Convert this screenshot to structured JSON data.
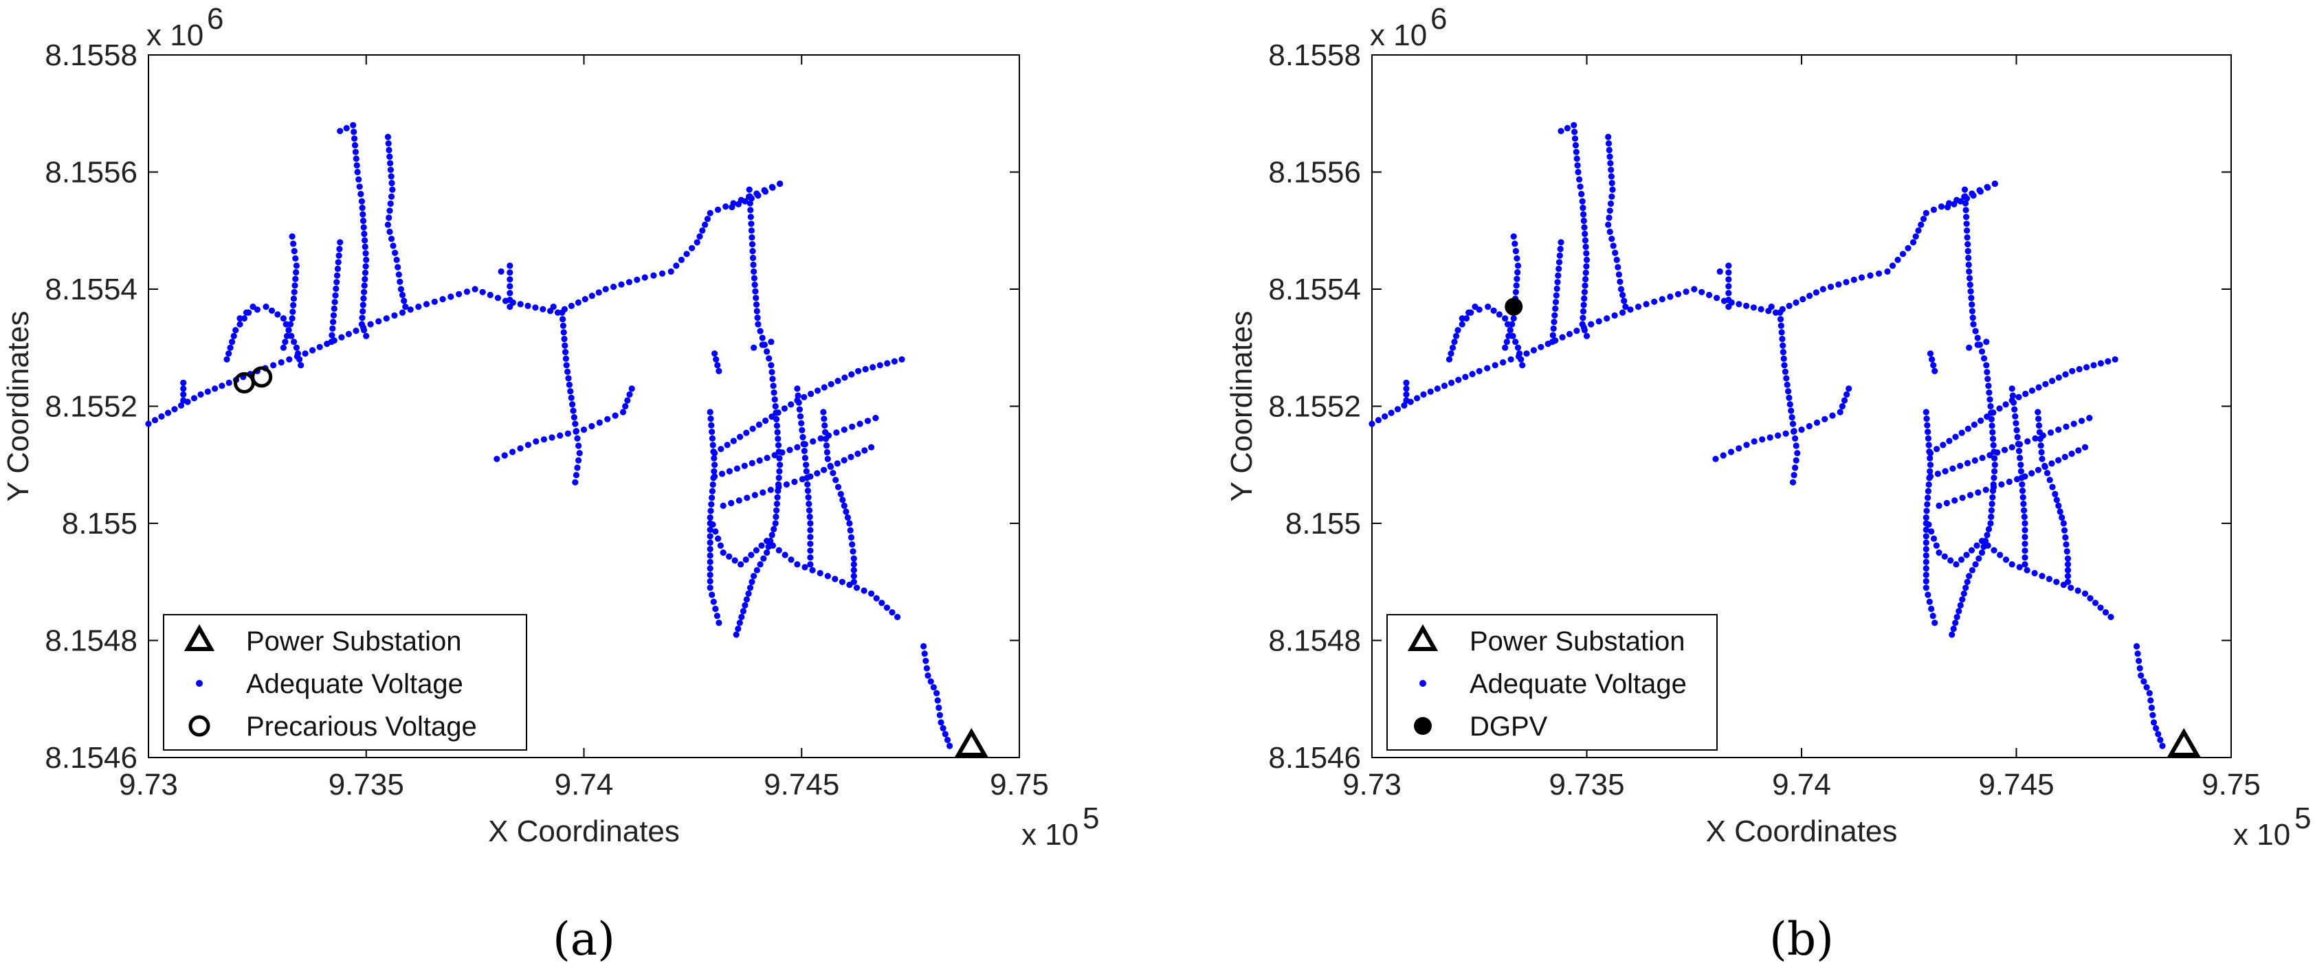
{
  "colors": {
    "adequate": "#0000ff",
    "marker": "#000000",
    "axis": "#000000"
  },
  "chart_data": [
    {
      "type": "scatter",
      "panel_label": "(a)",
      "xlabel": "X Coordinates",
      "ylabel": "Y Coordinates",
      "x_exponent": {
        "base": "x 10",
        "power": "5"
      },
      "y_exponent": {
        "base": "x 10",
        "power": "6"
      },
      "xlim": [
        9.73,
        9.75
      ],
      "ylim": [
        8.1546,
        8.1558
      ],
      "x_ticks": [
        "9.73",
        "9.735",
        "9.74",
        "9.745",
        "9.75"
      ],
      "y_ticks": [
        "8.1546",
        "8.1548",
        "8.155",
        "8.1552",
        "8.1554",
        "8.1556",
        "8.1558"
      ],
      "grid": false,
      "legend_position": "bottom-left",
      "legend": [
        "Power Substation",
        "Adequate Voltage",
        "Precarious Voltage"
      ],
      "series": [
        {
          "name": "Power Substation",
          "marker": "triangle",
          "points": [
            [
              9.7489,
              8.15462
            ]
          ]
        },
        {
          "name": "Precarious Voltage",
          "marker": "open-circle",
          "points": [
            [
              9.7322,
              8.15524
            ],
            [
              9.7326,
              8.15525
            ]
          ]
        }
      ]
    },
    {
      "type": "scatter",
      "panel_label": "(b)",
      "xlabel": "X Coordinates",
      "ylabel": "Y Coordinates",
      "x_exponent": {
        "base": "x 10",
        "power": "5"
      },
      "y_exponent": {
        "base": "x 10",
        "power": "6"
      },
      "xlim": [
        9.73,
        9.75
      ],
      "ylim": [
        8.1546,
        8.1558
      ],
      "x_ticks": [
        "9.73",
        "9.735",
        "9.74",
        "9.745",
        "9.75"
      ],
      "y_ticks": [
        "8.1546",
        "8.1548",
        "8.155",
        "8.1552",
        "8.1554",
        "8.1556",
        "8.1558"
      ],
      "grid": false,
      "legend_position": "bottom-left",
      "legend": [
        "Power Substation",
        "Adequate Voltage",
        "DGPV"
      ],
      "series": [
        {
          "name": "Power Substation",
          "marker": "triangle",
          "points": [
            [
              9.7489,
              8.15462
            ]
          ]
        },
        {
          "name": "DGPV",
          "marker": "filled-circle",
          "points": [
            [
              9.7333,
              8.15537
            ]
          ]
        }
      ]
    }
  ],
  "adequate_voltage_paths": [
    [
      [
        9.73,
        8.15517
      ],
      [
        9.7312,
        8.15522
      ],
      [
        9.7325,
        8.15526
      ],
      [
        9.7336,
        8.15529
      ],
      [
        9.7351,
        8.15534
      ],
      [
        9.7362,
        8.15537
      ],
      [
        9.7375,
        8.1554
      ],
      [
        9.7382,
        8.15538
      ],
      [
        9.7394,
        8.15536
      ],
      [
        9.7405,
        8.1554
      ],
      [
        9.7414,
        8.15542
      ],
      [
        9.742,
        8.15543
      ],
      [
        9.7426,
        8.15548
      ],
      [
        9.7429,
        8.15553
      ],
      [
        9.7445,
        8.15558
      ]
    ],
    [
      [
        9.7308,
        8.15521
      ],
      [
        9.7308,
        8.15524
      ]
    ],
    [
      [
        9.7318,
        8.15528
      ],
      [
        9.732,
        8.15533
      ],
      [
        9.7323,
        8.15536
      ],
      [
        9.7327,
        8.15537
      ],
      [
        9.7331,
        8.15535
      ],
      [
        9.7334,
        8.1553
      ],
      [
        9.7335,
        8.15527
      ]
    ],
    [
      [
        9.7321,
        8.15535
      ],
      [
        9.7324,
        8.15537
      ]
    ],
    [
      [
        9.7331,
        8.1553
      ],
      [
        9.7333,
        8.15535
      ],
      [
        9.7334,
        8.15544
      ],
      [
        9.7333,
        8.15549
      ]
    ],
    [
      [
        9.7344,
        8.15567
      ],
      [
        9.7347,
        8.15568
      ],
      [
        9.7348,
        8.1556
      ],
      [
        9.7349,
        8.15555
      ],
      [
        9.735,
        8.15545
      ],
      [
        9.7349,
        8.15534
      ],
      [
        9.735,
        8.15532
      ]
    ],
    [
      [
        9.7344,
        8.15548
      ],
      [
        9.7342,
        8.15531
      ]
    ],
    [
      [
        9.7355,
        8.15566
      ],
      [
        9.7356,
        8.15557
      ],
      [
        9.7355,
        8.15551
      ],
      [
        9.7357,
        8.15545
      ],
      [
        9.7358,
        8.1554
      ],
      [
        9.7359,
        8.15537
      ]
    ],
    [
      [
        9.7381,
        8.15543
      ],
      [
        9.7383,
        8.15544
      ],
      [
        9.7383,
        8.15537
      ]
    ],
    [
      [
        9.7393,
        8.15537
      ],
      [
        9.7395,
        8.15536
      ],
      [
        9.7396,
        8.15527
      ],
      [
        9.7398,
        8.15517
      ],
      [
        9.7399,
        8.15512
      ],
      [
        9.7398,
        8.15507
      ]
    ],
    [
      [
        9.738,
        8.15511
      ],
      [
        9.7389,
        8.15514
      ],
      [
        9.74,
        8.15516
      ],
      [
        9.7409,
        8.15519
      ],
      [
        9.7411,
        8.15523
      ]
    ],
    [
      [
        9.7445,
        8.15558
      ],
      [
        9.744,
        8.15556
      ],
      [
        9.7434,
        8.15554
      ]
    ],
    [
      [
        9.7438,
        8.15557
      ],
      [
        9.7439,
        8.15543
      ],
      [
        9.744,
        8.15534
      ],
      [
        9.7443,
        8.15527
      ],
      [
        9.7444,
        8.1552
      ],
      [
        9.7445,
        8.1551
      ],
      [
        9.7444,
        8.155
      ],
      [
        9.7442,
        8.15495
      ],
      [
        9.7439,
        8.15491
      ],
      [
        9.7437,
        8.15486
      ],
      [
        9.7435,
        8.15481
      ]
    ],
    [
      [
        9.743,
        8.15529
      ],
      [
        9.7431,
        8.15526
      ]
    ],
    [
      [
        9.7443,
        8.15531
      ],
      [
        9.7439,
        8.1553
      ]
    ],
    [
      [
        9.7429,
        8.15519
      ],
      [
        9.743,
        8.1551
      ],
      [
        9.7429,
        8.15501
      ],
      [
        9.7432,
        8.15495
      ],
      [
        9.7436,
        8.15493
      ],
      [
        9.7442,
        8.15497
      ],
      [
        9.7449,
        8.15493
      ],
      [
        9.7456,
        8.15491
      ],
      [
        9.7466,
        8.15488
      ],
      [
        9.7472,
        8.15484
      ]
    ],
    [
      [
        9.7429,
        8.155
      ],
      [
        9.7429,
        8.15489
      ],
      [
        9.7431,
        8.15483
      ]
    ],
    [
      [
        9.743,
        8.15512
      ],
      [
        9.7449,
        8.15521
      ],
      [
        9.7463,
        8.15526
      ],
      [
        9.7473,
        8.15528
      ]
    ],
    [
      [
        9.743,
        8.15508
      ],
      [
        9.7449,
        8.15513
      ],
      [
        9.7467,
        8.15518
      ]
    ],
    [
      [
        9.7432,
        8.15503
      ],
      [
        9.7452,
        8.15508
      ],
      [
        9.7466,
        8.15513
      ]
    ],
    [
      [
        9.7449,
        8.15523
      ],
      [
        9.7451,
        8.1551
      ],
      [
        9.7452,
        8.155
      ],
      [
        9.7452,
        8.15493
      ]
    ],
    [
      [
        9.7455,
        8.15519
      ],
      [
        9.7456,
        8.15511
      ],
      [
        9.7459,
        8.15505
      ],
      [
        9.7461,
        8.155
      ],
      [
        9.7462,
        8.15494
      ],
      [
        9.7462,
        8.1549
      ]
    ],
    [
      [
        9.7478,
        8.15479
      ],
      [
        9.7479,
        8.15474
      ],
      [
        9.7481,
        8.15471
      ],
      [
        9.7482,
        8.15466
      ],
      [
        9.7484,
        8.15462
      ]
    ]
  ]
}
